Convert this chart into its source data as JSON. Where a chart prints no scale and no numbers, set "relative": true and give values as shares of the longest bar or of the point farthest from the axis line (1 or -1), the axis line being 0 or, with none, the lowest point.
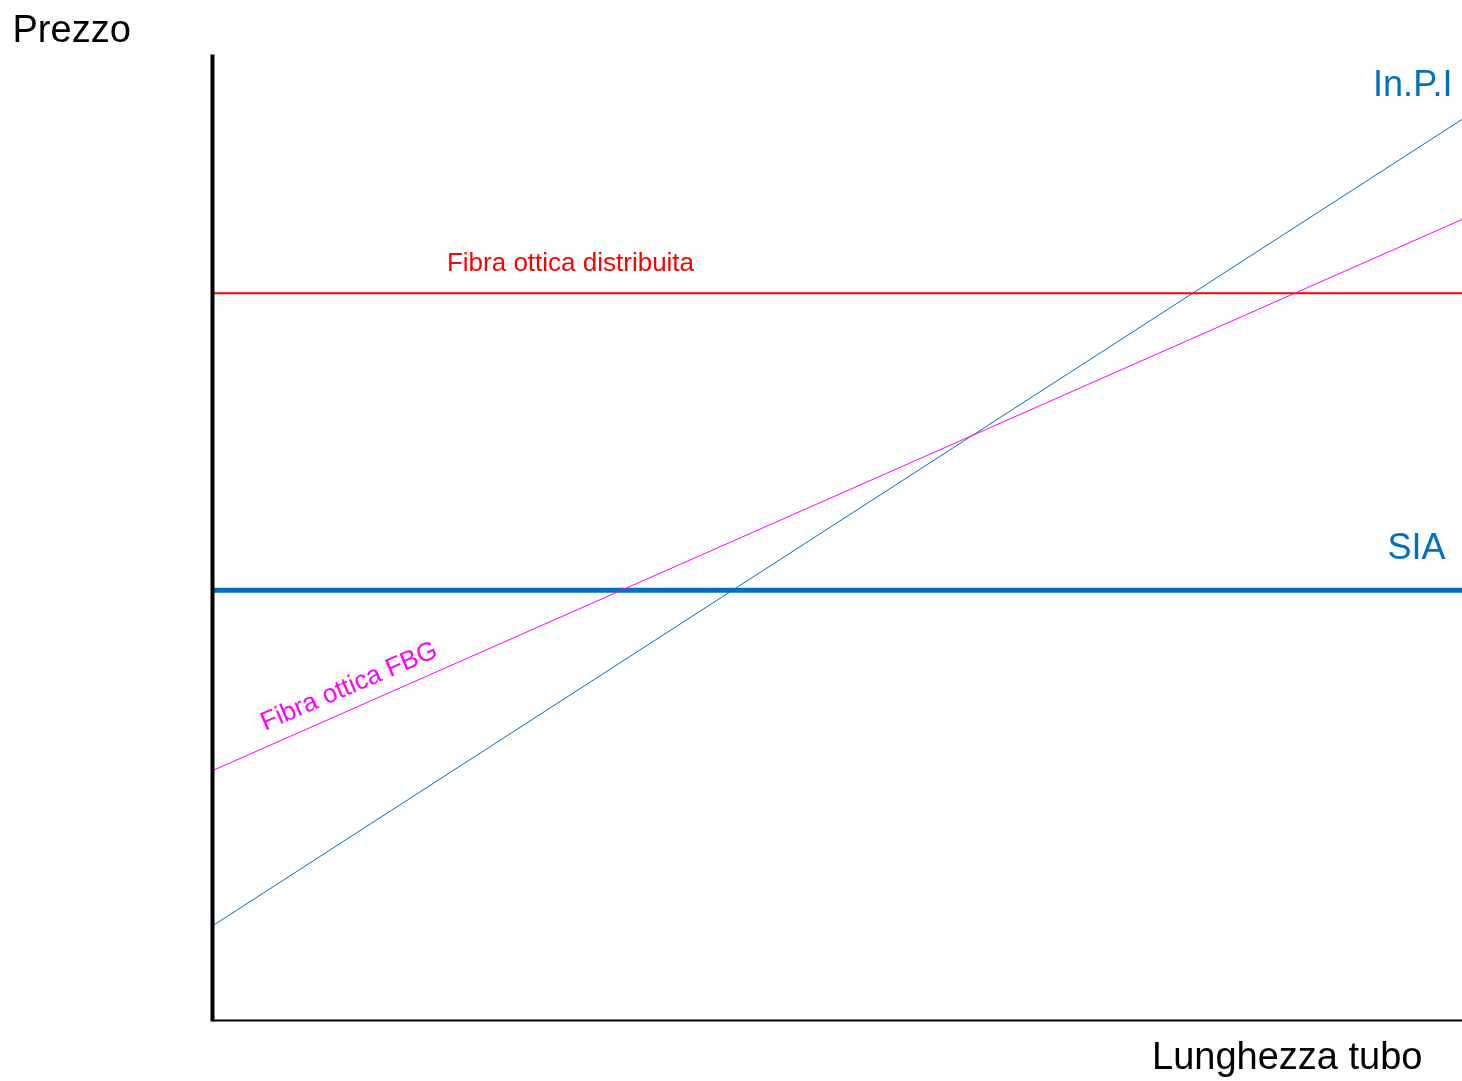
{
  "chart_data": {
    "type": "line",
    "relative": true,
    "xlabel": "Lunghezza tubo",
    "ylabel": "Prezzo",
    "categories": [
      null,
      null
    ],
    "grid": false,
    "legend": false,
    "tick_labels": false,
    "ref_lines": [
      {
        "axis": "y",
        "value": 0,
        "color": "#000000"
      }
    ],
    "series": [
      {
        "name": "In.P.I",
        "color": "#0070c0",
        "values": [
          0.106,
          1.0
        ]
      },
      {
        "name": "Fibra ottica distribuita",
        "color": "#ff0000",
        "values": [
          0.807,
          0.807
        ]
      },
      {
        "name": "SIA",
        "color": "#0070c0",
        "values": [
          0.478,
          0.478
        ]
      },
      {
        "name": "Fibra ottica FBG",
        "color": "#ff00ff",
        "values": [
          0.278,
          0.889
        ]
      }
    ]
  }
}
